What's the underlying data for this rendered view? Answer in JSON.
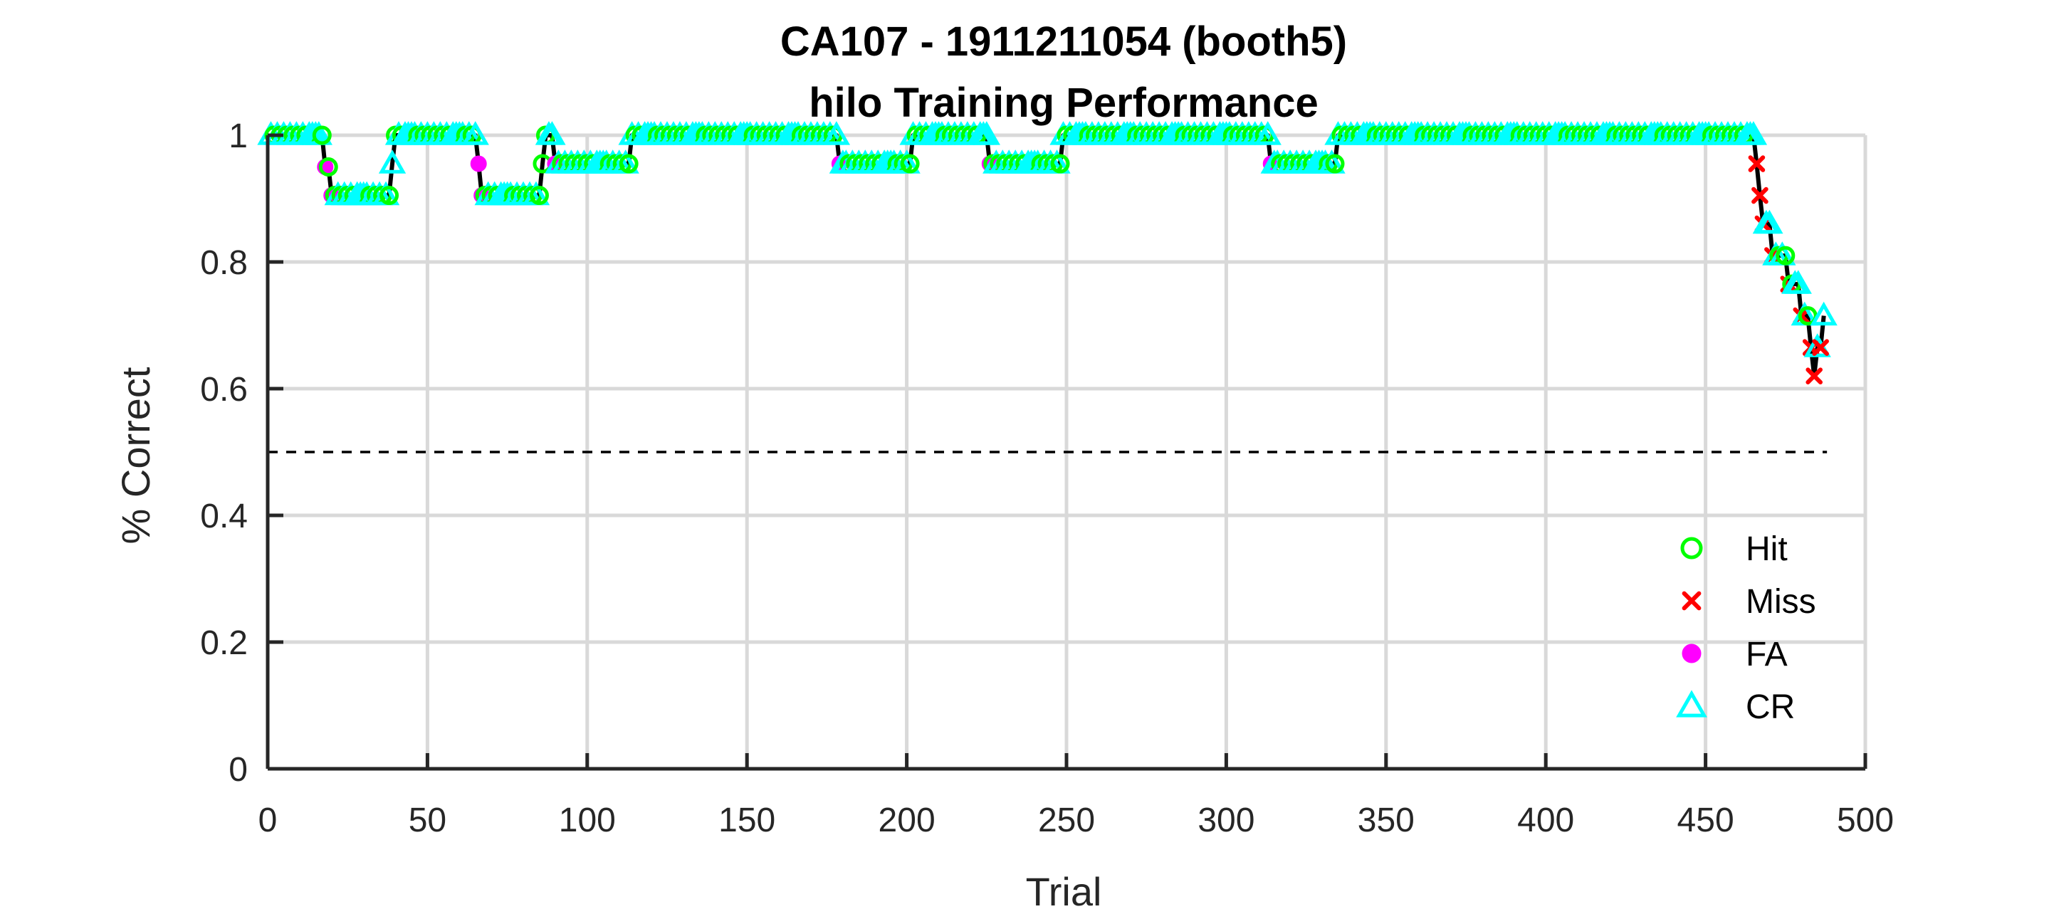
{
  "chart_data": {
    "type": "line",
    "title": "CA107 - 1911211054 (booth5)",
    "subtitle": "hilo Training Performance",
    "xlabel": "Trial",
    "ylabel": "% Correct",
    "xlim": [
      0,
      500
    ],
    "ylim": [
      0,
      1
    ],
    "x_ticks": [
      0,
      50,
      100,
      150,
      200,
      250,
      300,
      350,
      400,
      450,
      500
    ],
    "y_ticks": [
      0,
      0.2,
      0.4,
      0.6,
      0.8,
      1
    ],
    "x_tick_labels": [
      "0",
      "50",
      "100",
      "150",
      "200",
      "250",
      "300",
      "350",
      "400",
      "450",
      "500"
    ],
    "y_tick_labels": [
      "0",
      "0.2",
      "0.4",
      "0.6",
      "0.8",
      "1"
    ],
    "grid": true,
    "legend_position": "bottom-right",
    "chance_line": {
      "y": 0.5,
      "x_range": [
        0,
        488
      ],
      "style": "dashed",
      "color": "#000000"
    },
    "performance_line_color": "#000000",
    "segments": [
      [
        1,
        17,
        1.0,
        "HC"
      ],
      [
        18,
        18,
        0.95,
        "F"
      ],
      [
        19,
        19,
        0.95,
        "H"
      ],
      [
        20,
        20,
        0.905,
        "F"
      ],
      [
        21,
        38,
        0.905,
        "HC"
      ],
      [
        39,
        39,
        0.955,
        "C"
      ],
      [
        40,
        65,
        1.0,
        "HC"
      ],
      [
        66,
        66,
        0.955,
        "F"
      ],
      [
        67,
        67,
        0.905,
        "F"
      ],
      [
        68,
        85,
        0.905,
        "HC"
      ],
      [
        86,
        86,
        0.955,
        "H"
      ],
      [
        87,
        89,
        1.0,
        "HC"
      ],
      [
        90,
        90,
        0.955,
        "F"
      ],
      [
        91,
        113,
        0.955,
        "HC"
      ],
      [
        114,
        178,
        1.0,
        "HC"
      ],
      [
        179,
        179,
        0.955,
        "F"
      ],
      [
        180,
        201,
        0.955,
        "HC"
      ],
      [
        202,
        225,
        1.0,
        "HC"
      ],
      [
        226,
        226,
        0.955,
        "F"
      ],
      [
        227,
        248,
        0.955,
        "HC"
      ],
      [
        249,
        313,
        1.0,
        "HC"
      ],
      [
        314,
        314,
        0.955,
        "F"
      ],
      [
        315,
        334,
        0.955,
        "HC"
      ],
      [
        335,
        465,
        1.0,
        "HC"
      ],
      [
        466,
        466,
        0.955,
        "M"
      ],
      [
        467,
        467,
        0.905,
        "M"
      ],
      [
        468,
        468,
        0.86,
        "M"
      ],
      [
        469,
        470,
        0.86,
        "C"
      ],
      [
        471,
        471,
        0.81,
        "M"
      ],
      [
        472,
        475,
        0.81,
        "HC"
      ],
      [
        476,
        476,
        0.765,
        "M"
      ],
      [
        477,
        479,
        0.765,
        "HC"
      ],
      [
        480,
        480,
        0.715,
        "M"
      ],
      [
        481,
        482,
        0.715,
        "HC"
      ],
      [
        483,
        483,
        0.665,
        "M"
      ],
      [
        484,
        484,
        0.62,
        "M"
      ],
      [
        485,
        485,
        0.665,
        "C"
      ],
      [
        486,
        486,
        0.665,
        "M"
      ],
      [
        487,
        487,
        0.715,
        "C"
      ]
    ],
    "series": [
      {
        "name": "Hit",
        "code": "H",
        "marker": "circle-open",
        "color": "#00ff00"
      },
      {
        "name": "Miss",
        "code": "M",
        "marker": "x",
        "color": "#ff0000"
      },
      {
        "name": "FA",
        "code": "F",
        "marker": "circle-filled",
        "color": "#ff00ff"
      },
      {
        "name": "CR",
        "code": "C",
        "marker": "triangle-open",
        "color": "#00ffff"
      }
    ]
  }
}
